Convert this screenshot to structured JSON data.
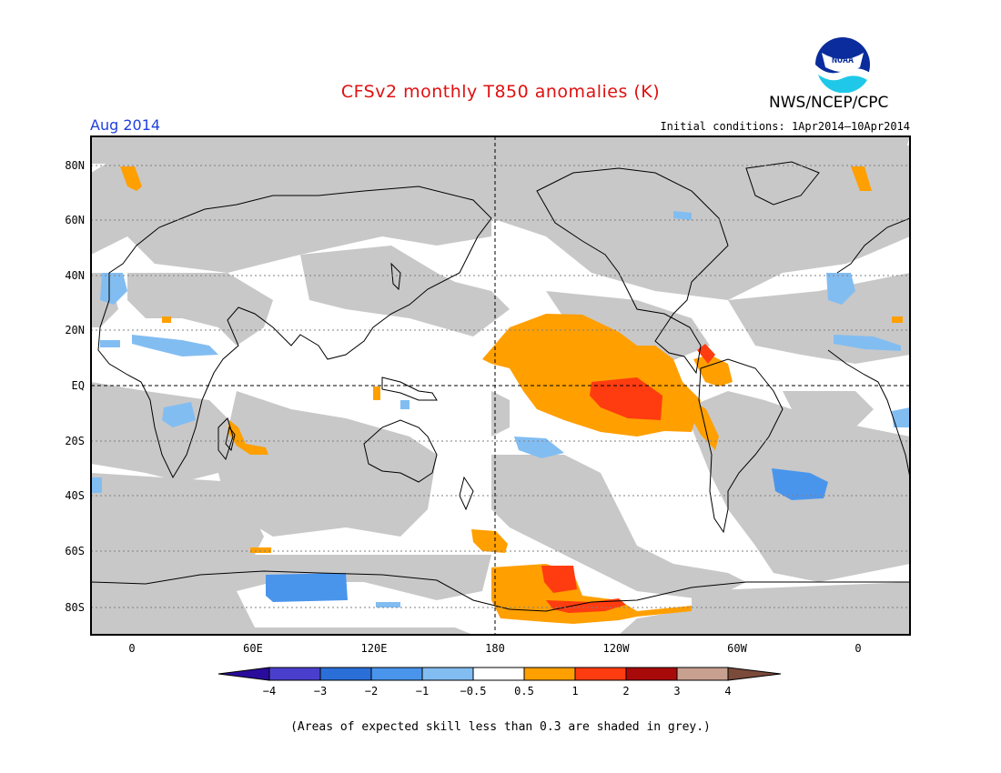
{
  "title": "CFSv2 monthly T850 anomalies (K)",
  "period": "Aug 2014",
  "initial_conditions": "Initial conditions: 1Apr2014–10Apr2014",
  "agency": "NWS/NCEP/CPC",
  "logo_text": "NOAA",
  "footnote": "(Areas of expected skill less than 0.3 are shaded in grey.)",
  "map": {
    "lat_labels": [
      "80N",
      "60N",
      "40N",
      "20N",
      "EQ",
      "20S",
      "40S",
      "60S",
      "80S"
    ],
    "lon_labels": [
      "0",
      "60E",
      "120E",
      "180",
      "120W",
      "60W",
      "0"
    ],
    "colors": {
      "land_mask_grey": "#c8c8c8",
      "neutral": "#ffffff",
      "coast": "#000000"
    }
  },
  "colorbar": {
    "ticks": [
      "−4",
      "−3",
      "−2",
      "−1",
      "−0.5",
      "0.5",
      "1",
      "2",
      "3",
      "4"
    ],
    "colors": [
      "#2a0c9c",
      "#4a3fcc",
      "#2a6fd8",
      "#4a95ec",
      "#82bdf2",
      "#ffffff",
      "#ff9f00",
      "#ff3c10",
      "#a80a0a",
      "#c8a090",
      "#7a4a3a"
    ]
  },
  "anomalies": {
    "warm_regions": [
      "Eastern tropical Pacific",
      "Peru coast",
      "Caribbean",
      "Southern Ocean near 150W",
      "Mozambique Channel",
      "Greenland"
    ],
    "cool_regions": [
      "Sahel",
      "Iberia",
      "Southern Africa",
      "Antarctica near 90E",
      "South Atlantic",
      "Southwest Pacific"
    ]
  }
}
